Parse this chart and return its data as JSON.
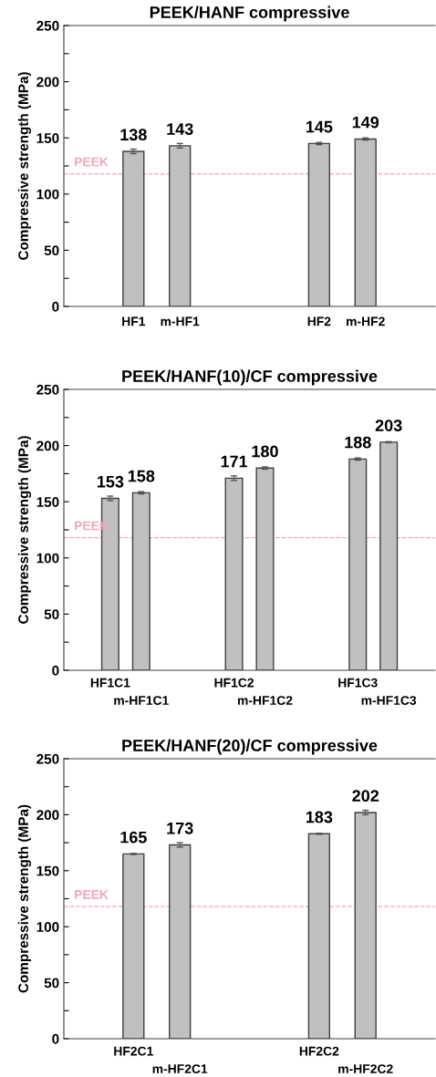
{
  "chart_data": [
    {
      "type": "bar",
      "title": "PEEK/HANF compressive",
      "ylabel": "Compressive strength (MPa)",
      "categories": [
        null,
        "HF1",
        "m-HF1",
        null,
        null,
        "HF2",
        "m-HF2",
        null
      ],
      "values": [
        null,
        138,
        143,
        null,
        null,
        145,
        149,
        null
      ],
      "errors": [
        null,
        2,
        2,
        null,
        null,
        1,
        1,
        null
      ],
      "color": "#c0c0c0",
      "data_labels": true,
      "ylim": [
        0,
        250
      ],
      "yticks": [
        0,
        {
          "value": 25,
          "label": null
        },
        50,
        {
          "value": 75,
          "label": null
        },
        100,
        {
          "value": 125,
          "label": null
        },
        150,
        {
          "value": 175,
          "label": null
        },
        200,
        {
          "value": 225,
          "label": null
        },
        250
      ],
      "ref_lines": [
        {
          "axis": "y",
          "value": 118,
          "label": "PEEK",
          "color": "#f4a6b8",
          "line_style": "dashed"
        }
      ],
      "grid": false,
      "legend": false
    },
    {
      "type": "bar",
      "title": "PEEK/HANF(10)/CF compressive",
      "ylabel": "Compressive strength (MPa)",
      "categories": [
        null,
        "HF1C1",
        "m-HF1C1",
        null,
        null,
        "HF1C2",
        "m-HF1C2",
        null,
        null,
        "HF1C3",
        "m-HF1C3",
        null
      ],
      "values": [
        null,
        153,
        158,
        null,
        null,
        171,
        180,
        null,
        null,
        188,
        203,
        null
      ],
      "errors": [
        null,
        2,
        1,
        null,
        null,
        2,
        1,
        null,
        null,
        1,
        0.5,
        null
      ],
      "color": "#c0c0c0",
      "data_labels": true,
      "ylim": [
        0,
        250
      ],
      "yticks": [
        0,
        {
          "value": 25,
          "label": null
        },
        50,
        {
          "value": 75,
          "label": null
        },
        100,
        {
          "value": 125,
          "label": null
        },
        150,
        {
          "value": 175,
          "label": null
        },
        200,
        {
          "value": 225,
          "label": null
        },
        250
      ],
      "ref_lines": [
        {
          "axis": "y",
          "value": 118,
          "label": "PEEK",
          "color": "#f4a6b8",
          "line_style": "dashed"
        }
      ],
      "grid": false,
      "legend": false
    },
    {
      "type": "bar",
      "title": "PEEK/HANF(20)/CF compressive",
      "ylabel": "Compressive strength (MPa)",
      "categories": [
        null,
        "HF2C1",
        "m-HF2C1",
        null,
        null,
        "HF2C2",
        "m-HF2C2",
        null
      ],
      "values": [
        null,
        165,
        173,
        null,
        null,
        183,
        202,
        null
      ],
      "errors": [
        null,
        0.5,
        2,
        null,
        null,
        0.5,
        2,
        null
      ],
      "color": "#c0c0c0",
      "data_labels": true,
      "ylim": [
        0,
        250
      ],
      "yticks": [
        0,
        {
          "value": 25,
          "label": null
        },
        50,
        {
          "value": 75,
          "label": null
        },
        100,
        {
          "value": 125,
          "label": null
        },
        150,
        {
          "value": 175,
          "label": null
        },
        200,
        {
          "value": 225,
          "label": null
        },
        250
      ],
      "ref_lines": [
        {
          "axis": "y",
          "value": 118,
          "label": "PEEK",
          "color": "#f4a6b8",
          "line_style": "dashed"
        }
      ],
      "grid": false,
      "legend": false
    }
  ]
}
